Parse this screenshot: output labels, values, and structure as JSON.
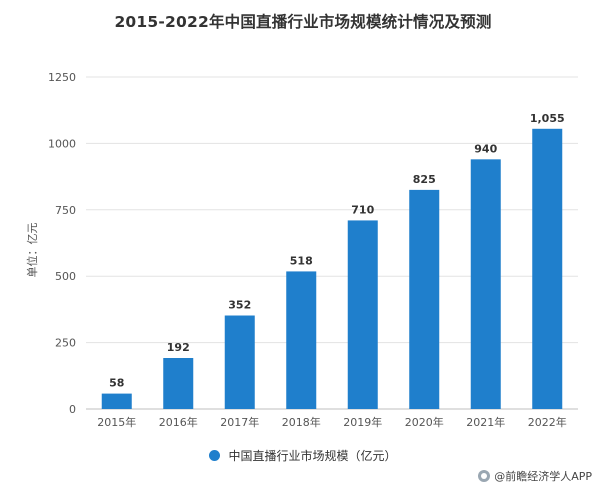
{
  "chart_data": {
    "type": "bar",
    "title": "2015-2022年中国直播行业市场规模统计情况及预测",
    "ylabel": "单位：亿元",
    "xlabel": "",
    "categories": [
      "2015年",
      "2016年",
      "2017年",
      "2018年",
      "2019年",
      "2020年",
      "2021年",
      "2022年"
    ],
    "series": [
      {
        "name": "中国直播行业市场规模（亿元）",
        "values": [
          58,
          192,
          352,
          518,
          710,
          825,
          940,
          1055
        ],
        "labels": [
          "58",
          "192",
          "352",
          "518",
          "710",
          "825",
          "940",
          "1,055"
        ],
        "color": "#1f7fcc"
      }
    ],
    "ylim": [
      0,
      1250
    ],
    "yticks": [
      0,
      250,
      500,
      750,
      1000,
      1250
    ],
    "grid": true,
    "legend_position": "bottom"
  },
  "legend": {
    "label": "中国直播行业市场规模（亿元）"
  },
  "source": {
    "text": "@前瞻经济学人APP"
  },
  "colors": {
    "bar": "#1f7fcc",
    "grid": "#e3e3e3",
    "axis": "#bfbfbf"
  }
}
